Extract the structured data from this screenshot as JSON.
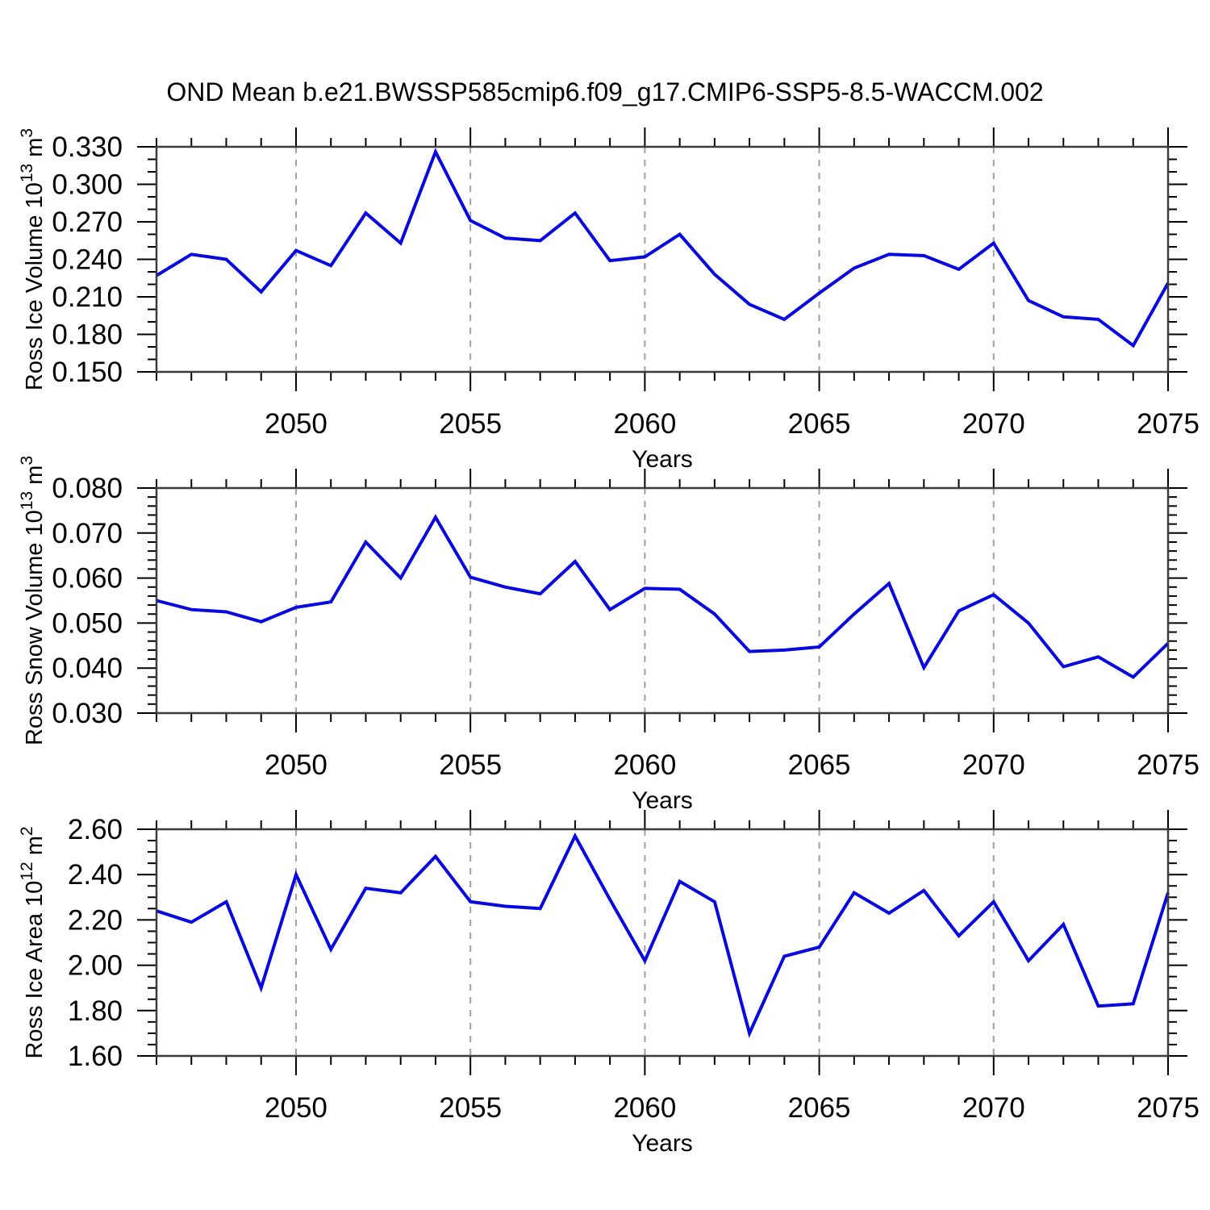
{
  "figure": {
    "title": "OND Mean b.e21.BWSSP585cmip6.f09_g17.CMIP6-SSP5-8.5-WACCM.002",
    "background": "#ffffff"
  },
  "style": {
    "line_color": "#0707e0",
    "grid_color": "#a0a0a0",
    "box_color": "#3c3c3c",
    "tick_color": "#000000",
    "text_color": "#000000"
  },
  "chart_data": [
    {
      "type": "line",
      "panel": "top",
      "ylabel": "Ross Ice Volume 10^13 m^3",
      "ylabel_parts": [
        {
          "t": "Ross Ice Volume 10"
        },
        {
          "t": "13",
          "sup": true
        },
        {
          "t": " m"
        },
        {
          "t": "3",
          "sup": true
        }
      ],
      "xlabel": "Years",
      "xlim": [
        2046,
        2075
      ],
      "ylim": [
        0.15,
        0.33
      ],
      "ytick_labels": [
        "0.330",
        "0.300",
        "0.270",
        "0.240",
        "0.210",
        "0.180",
        "0.150"
      ],
      "ytick_values": [
        0.33,
        0.3,
        0.27,
        0.24,
        0.21,
        0.18,
        0.15
      ],
      "yminor_step": 0.01,
      "xtick_labels": [
        "2050",
        "2055",
        "2060",
        "2065",
        "2070",
        "2075"
      ],
      "xtick_values": [
        2050,
        2055,
        2060,
        2065,
        2070,
        2075
      ],
      "xminor_step": 1,
      "grid_years": [
        2050,
        2055,
        2060,
        2065,
        2070
      ],
      "grid": "vertical-dashed",
      "legend": "none",
      "x": [
        2046,
        2047,
        2048,
        2049,
        2050,
        2051,
        2052,
        2053,
        2054,
        2055,
        2056,
        2057,
        2058,
        2059,
        2060,
        2061,
        2062,
        2063,
        2064,
        2065,
        2066,
        2067,
        2068,
        2069,
        2070,
        2071,
        2072,
        2073,
        2074,
        2075
      ],
      "series": [
        {
          "name": "Ross Ice Volume",
          "values": [
            0.227,
            0.244,
            0.24,
            0.214,
            0.247,
            0.235,
            0.277,
            0.253,
            0.326,
            0.271,
            0.257,
            0.255,
            0.277,
            0.239,
            0.242,
            0.26,
            0.228,
            0.204,
            0.192,
            0.213,
            0.233,
            0.244,
            0.243,
            0.232,
            0.253,
            0.207,
            0.194,
            0.192,
            0.171,
            0.221
          ]
        }
      ]
    },
    {
      "type": "line",
      "panel": "middle",
      "ylabel": "Ross Snow Volume 10^13 m^3",
      "ylabel_parts": [
        {
          "t": "Ross Snow Volume 10"
        },
        {
          "t": "13",
          "sup": true
        },
        {
          "t": " m"
        },
        {
          "t": "3",
          "sup": true
        }
      ],
      "xlabel": "Years",
      "xlim": [
        2046,
        2075
      ],
      "ylim": [
        0.03,
        0.08
      ],
      "ytick_labels": [
        "0.080",
        "0.070",
        "0.060",
        "0.050",
        "0.040",
        "0.030"
      ],
      "ytick_values": [
        0.08,
        0.07,
        0.06,
        0.05,
        0.04,
        0.03
      ],
      "yminor_step": 0.002,
      "xtick_labels": [
        "2050",
        "2055",
        "2060",
        "2065",
        "2070",
        "2075"
      ],
      "xtick_values": [
        2050,
        2055,
        2060,
        2065,
        2070,
        2075
      ],
      "xminor_step": 1,
      "grid_years": [
        2050,
        2055,
        2060,
        2065,
        2070
      ],
      "grid": "vertical-dashed",
      "legend": "none",
      "x": [
        2046,
        2047,
        2048,
        2049,
        2050,
        2051,
        2052,
        2053,
        2054,
        2055,
        2056,
        2057,
        2058,
        2059,
        2060,
        2061,
        2062,
        2063,
        2064,
        2065,
        2066,
        2067,
        2068,
        2069,
        2070,
        2071,
        2072,
        2073,
        2074,
        2075
      ],
      "series": [
        {
          "name": "Ross Snow Volume",
          "values": [
            0.055,
            0.053,
            0.0525,
            0.0503,
            0.0535,
            0.0547,
            0.068,
            0.06,
            0.0735,
            0.0602,
            0.058,
            0.0565,
            0.0637,
            0.053,
            0.0577,
            0.0575,
            0.052,
            0.0437,
            0.044,
            0.0447,
            0.052,
            0.0588,
            0.0401,
            0.0527,
            0.0563,
            0.05,
            0.0403,
            0.0425,
            0.038,
            0.0455
          ]
        }
      ]
    },
    {
      "type": "line",
      "panel": "bottom",
      "ylabel": "Ross Ice Area 10^12 m^2",
      "ylabel_parts": [
        {
          "t": "Ross Ice Area 10"
        },
        {
          "t": "12",
          "sup": true
        },
        {
          "t": " m"
        },
        {
          "t": "2",
          "sup": true
        }
      ],
      "xlabel": "Years",
      "xlim": [
        2046,
        2075
      ],
      "ylim": [
        1.6,
        2.6
      ],
      "ytick_labels": [
        "2.60",
        "2.40",
        "2.20",
        "2.00",
        "1.80",
        "1.60"
      ],
      "ytick_values": [
        2.6,
        2.4,
        2.2,
        2.0,
        1.8,
        1.6
      ],
      "yminor_step": 0.05,
      "xtick_labels": [
        "2050",
        "2055",
        "2060",
        "2065",
        "2070",
        "2075"
      ],
      "xtick_values": [
        2050,
        2055,
        2060,
        2065,
        2070,
        2075
      ],
      "xminor_step": 1,
      "grid_years": [
        2050,
        2055,
        2060,
        2065,
        2070
      ],
      "grid": "vertical-dashed",
      "legend": "none",
      "x": [
        2046,
        2047,
        2048,
        2049,
        2050,
        2051,
        2052,
        2053,
        2054,
        2055,
        2056,
        2057,
        2058,
        2059,
        2060,
        2061,
        2062,
        2063,
        2064,
        2065,
        2066,
        2067,
        2068,
        2069,
        2070,
        2071,
        2072,
        2073,
        2074,
        2075
      ],
      "series": [
        {
          "name": "Ross Ice Area",
          "values": [
            2.24,
            2.19,
            2.28,
            1.9,
            2.4,
            2.07,
            2.34,
            2.32,
            2.48,
            2.28,
            2.26,
            2.25,
            2.57,
            2.29,
            2.02,
            2.37,
            2.28,
            1.7,
            2.04,
            2.08,
            2.32,
            2.23,
            2.33,
            2.13,
            2.28,
            2.02,
            2.18,
            1.82,
            1.83,
            2.32
          ]
        }
      ]
    }
  ]
}
